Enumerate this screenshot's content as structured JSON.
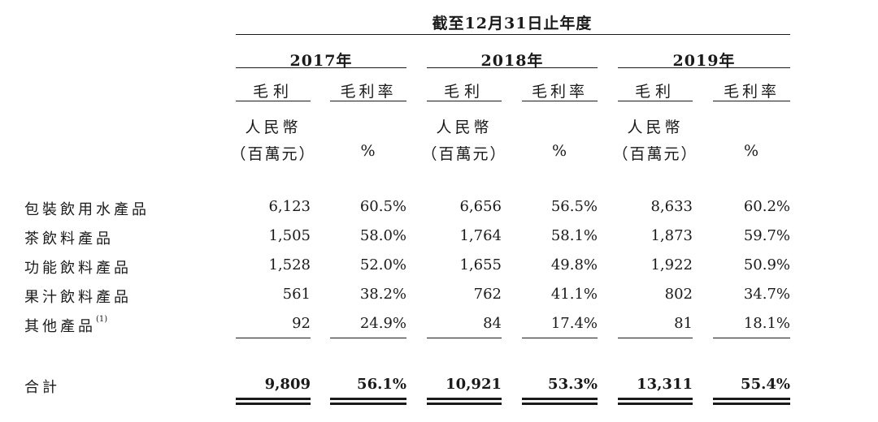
{
  "header": {
    "period": "截至12月31日止年度",
    "years": [
      "2017年",
      "2018年",
      "2019年"
    ],
    "col_gross_profit": "毛利",
    "col_margin": "毛利率",
    "unit_line1": "人民幣",
    "unit_line2": "（百萬元）",
    "unit_pct": "%"
  },
  "rows": [
    {
      "label": "包裝飲用水產品",
      "note": "",
      "values": [
        "6,123",
        "60.5%",
        "6,656",
        "56.5%",
        "8,633",
        "60.2%"
      ]
    },
    {
      "label": "茶飲料產品",
      "note": "",
      "values": [
        "1,505",
        "58.0%",
        "1,764",
        "58.1%",
        "1,873",
        "59.7%"
      ]
    },
    {
      "label": "功能飲料產品",
      "note": "",
      "values": [
        "1,528",
        "52.0%",
        "1,655",
        "49.8%",
        "1,922",
        "50.9%"
      ]
    },
    {
      "label": "果汁飲料產品",
      "note": "",
      "values": [
        "561",
        "38.2%",
        "762",
        "41.1%",
        "802",
        "34.7%"
      ]
    },
    {
      "label": "其他產品",
      "note": "(1)",
      "values": [
        "92",
        "24.9%",
        "84",
        "17.4%",
        "81",
        "18.1%"
      ]
    }
  ],
  "total": {
    "label": "合計",
    "values": [
      "9,809",
      "56.1%",
      "10,921",
      "53.3%",
      "13,311",
      "55.4%"
    ]
  }
}
